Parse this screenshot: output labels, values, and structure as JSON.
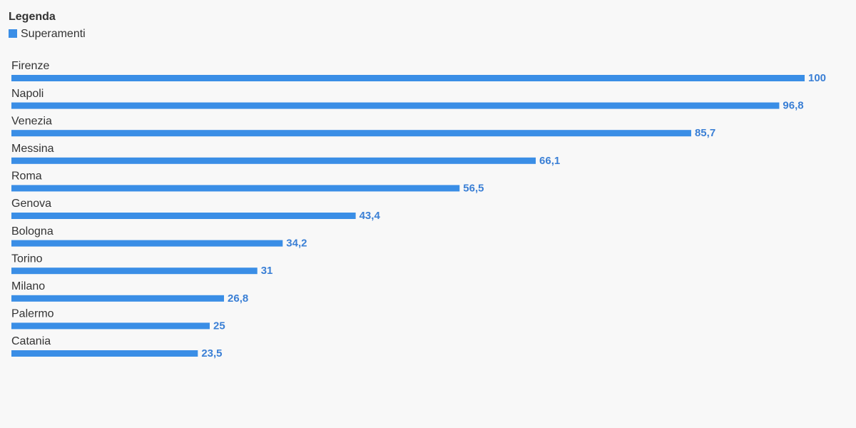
{
  "chart_data": {
    "type": "bar",
    "orientation": "horizontal",
    "title": "Legenda",
    "categories": [
      "Firenze",
      "Napoli",
      "Venezia",
      "Messina",
      "Roma",
      "Genova",
      "Bologna",
      "Torino",
      "Milano",
      "Palermo",
      "Catania"
    ],
    "series": [
      {
        "name": "Superamenti",
        "color": "#3a8ee6",
        "values": [
          100,
          96.8,
          85.7,
          66.1,
          56.5,
          43.4,
          34.2,
          31,
          26.8,
          25,
          23.5
        ],
        "value_labels": [
          "100",
          "96,8",
          "85,7",
          "66,1",
          "56,5",
          "43,4",
          "34,2",
          "31",
          "26,8",
          "25",
          "23,5"
        ]
      }
    ]
  }
}
